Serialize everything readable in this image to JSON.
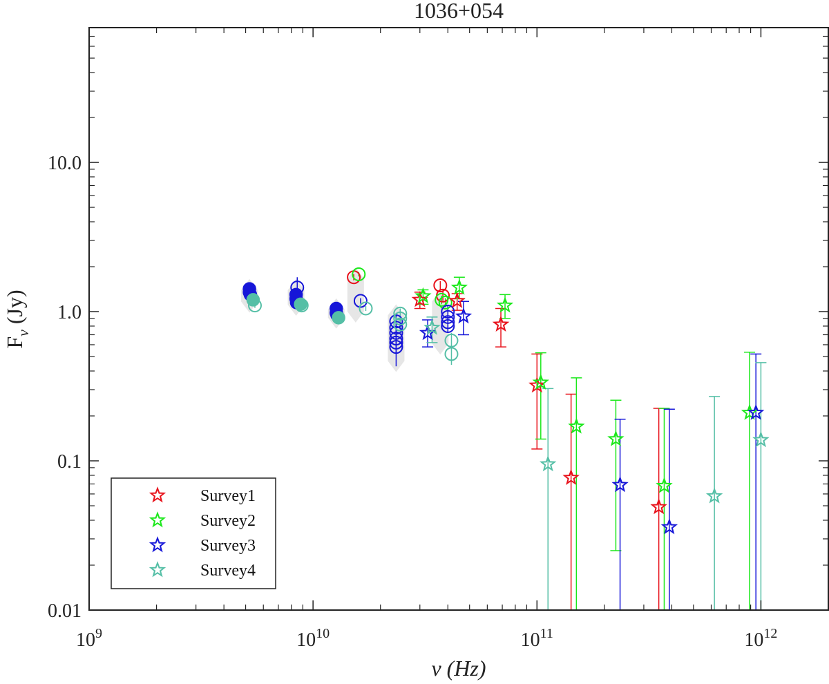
{
  "chart_data": {
    "type": "scatter",
    "title": "1036+054",
    "xlabel": "ν (Hz)",
    "ylabel_main": "F",
    "ylabel_sub": "ν",
    "ylabel_unit": "(Jy)",
    "xscale": "log",
    "yscale": "log",
    "xlim": [
      1000000000.0,
      2000000000000.0
    ],
    "ylim": [
      0.01,
      80
    ],
    "x_ticks": [
      {
        "value": 1000000000.0,
        "base": "10",
        "exp": "9"
      },
      {
        "value": 10000000000.0,
        "base": "10",
        "exp": "10"
      },
      {
        "value": 100000000000.0,
        "base": "10",
        "exp": "11"
      },
      {
        "value": 1000000000000.0,
        "base": "10",
        "exp": "12"
      }
    ],
    "y_ticks": [
      {
        "value": 0.01,
        "label": "0.01"
      },
      {
        "value": 0.1,
        "label": "0.1"
      },
      {
        "value": 1.0,
        "label": "1.0"
      },
      {
        "value": 10.0,
        "label": "10.0"
      }
    ],
    "legend": {
      "position": "bottom-left",
      "entries": [
        {
          "name": "Survey1",
          "color": "#e8121b"
        },
        {
          "name": "Survey2",
          "color": "#1be81b"
        },
        {
          "name": "Survey3",
          "color": "#1616d8"
        },
        {
          "name": "Survey4",
          "color": "#55bfa6"
        }
      ]
    },
    "variability_bands": [
      {
        "x": 5200000000.0,
        "ymin": 1.05,
        "ymax": 1.55
      },
      {
        "x": 8400000000.0,
        "ymin": 1.0,
        "ymax": 1.55
      },
      {
        "x": 12700000000.0,
        "ymin": 0.82,
        "ymax": 1.15
      },
      {
        "x": 15500000000.0,
        "ymin": 0.9,
        "ymax": 1.85
      },
      {
        "x": 23500000000.0,
        "ymin": 0.42,
        "ymax": 1.05
      },
      {
        "x": 37000000000.0,
        "ymin": 0.55,
        "ymax": 1.3
      }
    ],
    "filled_points": [
      {
        "series": "Survey3",
        "x": 5200000000.0,
        "y": 1.42
      },
      {
        "series": "Survey3",
        "x": 5200000000.0,
        "y": 1.35
      },
      {
        "series": "Survey3",
        "x": 5250000000.0,
        "y": 1.3
      },
      {
        "series": "Survey3",
        "x": 8400000000.0,
        "y": 1.3
      },
      {
        "series": "Survey3",
        "x": 8400000000.0,
        "y": 1.22
      },
      {
        "series": "Survey3",
        "x": 8450000000.0,
        "y": 1.15
      },
      {
        "series": "Survey3",
        "x": 12700000000.0,
        "y": 1.05
      },
      {
        "series": "Survey3",
        "x": 12700000000.0,
        "y": 0.98
      },
      {
        "series": "Survey3",
        "x": 12800000000.0,
        "y": 0.95
      },
      {
        "series": "Survey4",
        "x": 5400000000.0,
        "y": 1.2
      },
      {
        "series": "Survey4",
        "x": 8800000000.0,
        "y": 1.12
      },
      {
        "series": "Survey4",
        "x": 13000000000.0,
        "y": 0.91
      }
    ],
    "circle_points": [
      {
        "series": "Survey3",
        "x": 8500000000.0,
        "y": 1.45,
        "err": 0.25
      },
      {
        "series": "Survey3",
        "x": 16300000000.0,
        "y": 1.18,
        "err": 0.05
      },
      {
        "series": "Survey1",
        "x": 15200000000.0,
        "y": 1.7,
        "err": 0.08
      },
      {
        "series": "Survey2",
        "x": 16000000000.0,
        "y": 1.78,
        "err": 0.06
      },
      {
        "series": "Survey4",
        "x": 5500000000.0,
        "y": 1.1,
        "err": 0.04
      },
      {
        "series": "Survey4",
        "x": 8900000000.0,
        "y": 1.1,
        "err": 0.04
      },
      {
        "series": "Survey4",
        "x": 17200000000.0,
        "y": 1.05,
        "err": 0.04
      },
      {
        "series": "Survey3",
        "x": 23500000000.0,
        "y": 0.58,
        "err": 0.15
      },
      {
        "series": "Survey3",
        "x": 23500000000.0,
        "y": 0.62,
        "err": 0.1
      },
      {
        "series": "Survey3",
        "x": 23500000000.0,
        "y": 0.66,
        "err": 0.1
      },
      {
        "series": "Survey3",
        "x": 23500000000.0,
        "y": 0.72,
        "err": 0.1
      },
      {
        "series": "Survey3",
        "x": 23500000000.0,
        "y": 0.78,
        "err": 0.1
      },
      {
        "series": "Survey3",
        "x": 23500000000.0,
        "y": 0.86,
        "err": 0.1
      },
      {
        "series": "Survey4",
        "x": 24500000000.0,
        "y": 0.82,
        "err": 0.08
      },
      {
        "series": "Survey4",
        "x": 24500000000.0,
        "y": 0.9,
        "err": 0.08
      },
      {
        "series": "Survey4",
        "x": 24500000000.0,
        "y": 0.97,
        "err": 0.08
      },
      {
        "series": "Survey1",
        "x": 37000000000.0,
        "y": 1.5,
        "err": 0.1
      },
      {
        "series": "Survey1",
        "x": 38000000000.0,
        "y": 1.28,
        "err": 0.1
      },
      {
        "series": "Survey2",
        "x": 37500000000.0,
        "y": 1.2,
        "err": 0.08
      },
      {
        "series": "Survey2",
        "x": 39000000000.0,
        "y": 1.15,
        "err": 0.08
      },
      {
        "series": "Survey3",
        "x": 40000000000.0,
        "y": 1.0,
        "err": 0.1
      },
      {
        "series": "Survey3",
        "x": 40000000000.0,
        "y": 0.92,
        "err": 0.08
      },
      {
        "series": "Survey3",
        "x": 40000000000.0,
        "y": 0.85,
        "err": 0.08
      },
      {
        "series": "Survey3",
        "x": 40000000000.0,
        "y": 0.8,
        "err": 0.08
      },
      {
        "series": "Survey4",
        "x": 41500000000.0,
        "y": 0.64,
        "err": 0.08
      },
      {
        "series": "Survey4",
        "x": 41500000000.0,
        "y": 0.52,
        "err": 0.08
      }
    ],
    "star_points": [
      {
        "series": "Survey1",
        "x": 30000000000.0,
        "y": 1.2,
        "lo": 1.05,
        "hi": 1.35
      },
      {
        "series": "Survey1",
        "x": 44000000000.0,
        "y": 1.18,
        "lo": 1.02,
        "hi": 1.32
      },
      {
        "series": "Survey1",
        "x": 69000000000.0,
        "y": 0.82,
        "lo": 0.58,
        "hi": 1.05
      },
      {
        "series": "Survey1",
        "x": 100000000000.0,
        "y": 0.32,
        "lo": 0.12,
        "hi": 0.52
      },
      {
        "series": "Survey1",
        "x": 142000000000.0,
        "y": 0.077,
        "lo": 0.01,
        "hi": 0.28
      },
      {
        "series": "Survey1",
        "x": 350000000000.0,
        "y": 0.049,
        "lo": 0.01,
        "hi": 0.225
      },
      {
        "series": "Survey2",
        "x": 31000000000.0,
        "y": 1.27,
        "lo": 1.12,
        "hi": 1.4
      },
      {
        "series": "Survey2",
        "x": 45000000000.0,
        "y": 1.45,
        "lo": 1.22,
        "hi": 1.7
      },
      {
        "series": "Survey2",
        "x": 72000000000.0,
        "y": 1.1,
        "lo": 0.9,
        "hi": 1.3
      },
      {
        "series": "Survey2",
        "x": 104000000000.0,
        "y": 0.335,
        "lo": 0.14,
        "hi": 0.53
      },
      {
        "series": "Survey2",
        "x": 150000000000.0,
        "y": 0.17,
        "lo": 0.01,
        "hi": 0.36
      },
      {
        "series": "Survey2",
        "x": 225000000000.0,
        "y": 0.14,
        "lo": 0.025,
        "hi": 0.255
      },
      {
        "series": "Survey2",
        "x": 370000000000.0,
        "y": 0.068,
        "lo": 0.01,
        "hi": 0.225
      },
      {
        "series": "Survey2",
        "x": 890000000000.0,
        "y": 0.21,
        "lo": 0.01,
        "hi": 0.535
      },
      {
        "series": "Survey3",
        "x": 32500000000.0,
        "y": 0.72,
        "lo": 0.58,
        "hi": 0.88
      },
      {
        "series": "Survey3",
        "x": 47000000000.0,
        "y": 0.93,
        "lo": 0.7,
        "hi": 1.17
      },
      {
        "series": "Survey3",
        "x": 235000000000.0,
        "y": 0.069,
        "lo": 0.01,
        "hi": 0.19
      },
      {
        "series": "Survey3",
        "x": 390000000000.0,
        "y": 0.036,
        "lo": 0.01,
        "hi": 0.222
      },
      {
        "series": "Survey3",
        "x": 950000000000.0,
        "y": 0.21,
        "lo": 0.01,
        "hi": 0.52
      },
      {
        "series": "Survey4",
        "x": 34000000000.0,
        "y": 0.78,
        "lo": 0.62,
        "hi": 0.92
      },
      {
        "series": "Survey4",
        "x": 112000000000.0,
        "y": 0.095,
        "lo": 0.01,
        "hi": 0.305
      },
      {
        "series": "Survey4",
        "x": 620000000000.0,
        "y": 0.058,
        "lo": 0.01,
        "hi": 0.27
      },
      {
        "series": "Survey4",
        "x": 1000000000000.0,
        "y": 0.138,
        "lo": 0.01,
        "hi": 0.455
      }
    ]
  }
}
